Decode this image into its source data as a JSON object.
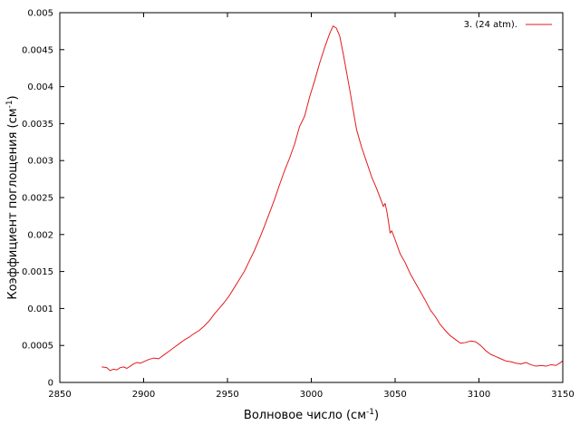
{
  "chart_data": {
    "type": "line",
    "title": "",
    "xlabel": {
      "prefix": "Волновое число (см",
      "sup": "-1",
      "suffix": ")"
    },
    "ylabel": {
      "prefix": "Коэффициент поглощения (см",
      "sup": "-1",
      "suffix": ")"
    },
    "xlim": [
      2850,
      3150
    ],
    "ylim": [
      0,
      0.005
    ],
    "xticks": [
      "2850",
      "2900",
      "2950",
      "3000",
      "3050",
      "3100",
      "3150"
    ],
    "yticks": [
      "0",
      "0.0005",
      "0.001",
      "0.0015",
      "0.002",
      "0.0025",
      "0.003",
      "0.0035",
      "0.004",
      "0.0045",
      "0.005"
    ],
    "grid": false,
    "legend_position": "top-right",
    "series": [
      {
        "name": "3. (24 atm).",
        "color": "#e31a1c",
        "x": [
          2875,
          2878,
          2880,
          2882,
          2884,
          2886,
          2888,
          2890,
          2892,
          2894,
          2896,
          2898,
          2900,
          2903,
          2906,
          2909,
          2912,
          2915,
          2918,
          2921,
          2924,
          2927,
          2930,
          2933,
          2936,
          2939,
          2942,
          2945,
          2948,
          2951,
          2954,
          2957,
          2960,
          2963,
          2966,
          2969,
          2972,
          2975,
          2978,
          2981,
          2984,
          2987,
          2990,
          2993,
          2996,
          2999,
          3002,
          3005,
          3008,
          3011,
          3013,
          3015,
          3017,
          3019,
          3021,
          3023,
          3025,
          3027,
          3030,
          3033,
          3036,
          3039,
          3042,
          3043,
          3044,
          3045,
          3046,
          3047,
          3048,
          3050,
          3053,
          3056,
          3059,
          3062,
          3065,
          3068,
          3071,
          3074,
          3077,
          3080,
          3083,
          3086,
          3089,
          3092,
          3095,
          3098,
          3101,
          3104,
          3107,
          3110,
          3113,
          3116,
          3119,
          3122,
          3125,
          3128,
          3131,
          3134,
          3137,
          3140,
          3143,
          3146,
          3148,
          3150
        ],
        "values": [
          0.00021,
          0.0002,
          0.00016,
          0.00018,
          0.00017,
          0.0002,
          0.00021,
          0.00019,
          0.00022,
          0.00025,
          0.00027,
          0.00026,
          0.00028,
          0.00031,
          0.00033,
          0.00032,
          0.00037,
          0.00042,
          0.00047,
          0.00052,
          0.00057,
          0.00061,
          0.00066,
          0.0007,
          0.00076,
          0.00083,
          0.00092,
          0.001,
          0.00108,
          0.00117,
          0.00128,
          0.00139,
          0.0015,
          0.00164,
          0.00178,
          0.00194,
          0.00211,
          0.00229,
          0.00247,
          0.00267,
          0.00286,
          0.00303,
          0.00322,
          0.00346,
          0.0036,
          0.00386,
          0.00408,
          0.00432,
          0.00453,
          0.00472,
          0.00482,
          0.00479,
          0.00468,
          0.00445,
          0.0042,
          0.00395,
          0.00368,
          0.00342,
          0.00318,
          0.00298,
          0.00278,
          0.00262,
          0.00244,
          0.00238,
          0.00242,
          0.00232,
          0.00218,
          0.00202,
          0.00205,
          0.00193,
          0.00174,
          0.00162,
          0.00147,
          0.00135,
          0.00123,
          0.00111,
          0.00098,
          0.00089,
          0.00078,
          0.0007,
          0.00063,
          0.00058,
          0.00053,
          0.00054,
          0.00056,
          0.00055,
          0.0005,
          0.00043,
          0.00038,
          0.00035,
          0.00032,
          0.00029,
          0.00028,
          0.00026,
          0.00025,
          0.00027,
          0.00024,
          0.00022,
          0.00023,
          0.00022,
          0.00024,
          0.00023,
          0.00026,
          0.00029
        ]
      }
    ]
  }
}
